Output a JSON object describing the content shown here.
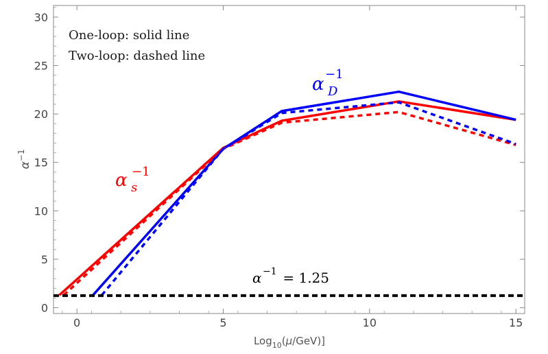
{
  "chart_data": {
    "type": "line",
    "title": "",
    "xlabel": {
      "prefix": "Log",
      "sub": "10",
      "mid": "(",
      "mu": "μ",
      "suffix": "/GeV)]"
    },
    "ylabel": {
      "base": "α",
      "sup": "−1"
    },
    "xlim": [
      -0.8,
      15.3
    ],
    "ylim": [
      -0.6,
      31.2
    ],
    "xticks": [
      0,
      5,
      10,
      15
    ],
    "yticks": [
      0,
      5,
      10,
      15,
      20,
      25,
      30
    ],
    "annotations": {
      "legend_line1": "One-loop: solid line",
      "legend_line2": "Two-loop: dashed line",
      "alpha_d": {
        "base": "α",
        "sub": "D",
        "sup": "−1"
      },
      "alpha_s": {
        "base": "α",
        "sub": "s",
        "sup": "−1"
      },
      "threshold": {
        "base": "α",
        "sup": "−1",
        "rest": " = 1.25"
      }
    },
    "series": [
      {
        "name": "alpha_s one-loop",
        "color": "#ff0000",
        "dash": "solid",
        "x": [
          -0.6,
          5.0,
          7.0,
          11.0,
          15.0
        ],
        "y": [
          1.3,
          16.5,
          19.3,
          21.3,
          19.4
        ]
      },
      {
        "name": "alpha_s two-loop",
        "color": "#ff0000",
        "dash": "dashed",
        "x": [
          -0.45,
          5.0,
          7.0,
          11.0,
          15.0
        ],
        "y": [
          1.3,
          16.4,
          19.1,
          20.2,
          16.8
        ]
      },
      {
        "name": "alpha_D one-loop",
        "color": "#0000ff",
        "dash": "solid",
        "x": [
          0.55,
          5.0,
          7.0,
          11.0,
          15.0
        ],
        "y": [
          1.3,
          16.4,
          20.3,
          22.3,
          19.4
        ]
      },
      {
        "name": "alpha_D two-loop",
        "color": "#0000ff",
        "dash": "dashed",
        "x": [
          0.85,
          5.0,
          7.0,
          11.0,
          15.0
        ],
        "y": [
          1.3,
          16.4,
          20.1,
          21.2,
          16.9
        ]
      },
      {
        "name": "alpha threshold 1.25",
        "color": "#000000",
        "dash": "dashed",
        "x": [
          -0.8,
          15.3
        ],
        "y": [
          1.25,
          1.25
        ]
      }
    ]
  }
}
